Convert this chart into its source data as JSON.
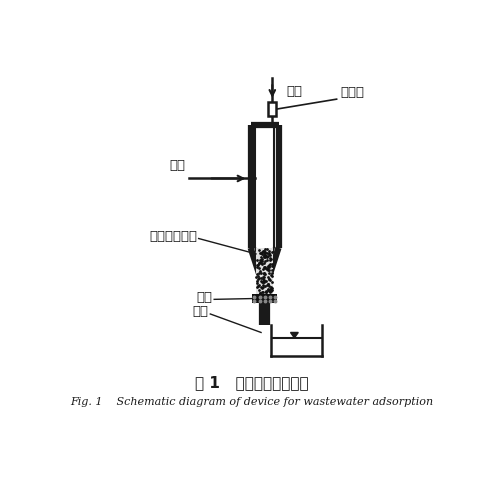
{
  "title_cn": "图 1   废水吸附装置示意",
  "title_en": "Fig. 1    Schematic diagram of device for wastewater adsorption",
  "label_wastewater": "废水",
  "label_flowmeter": "流量计",
  "label_air": "空气",
  "label_adsorbent": "吸附剂＋污泥",
  "label_filter": "滤板",
  "label_outlet": "出水",
  "bg_color": "#ffffff",
  "line_color": "#1a1a1a"
}
